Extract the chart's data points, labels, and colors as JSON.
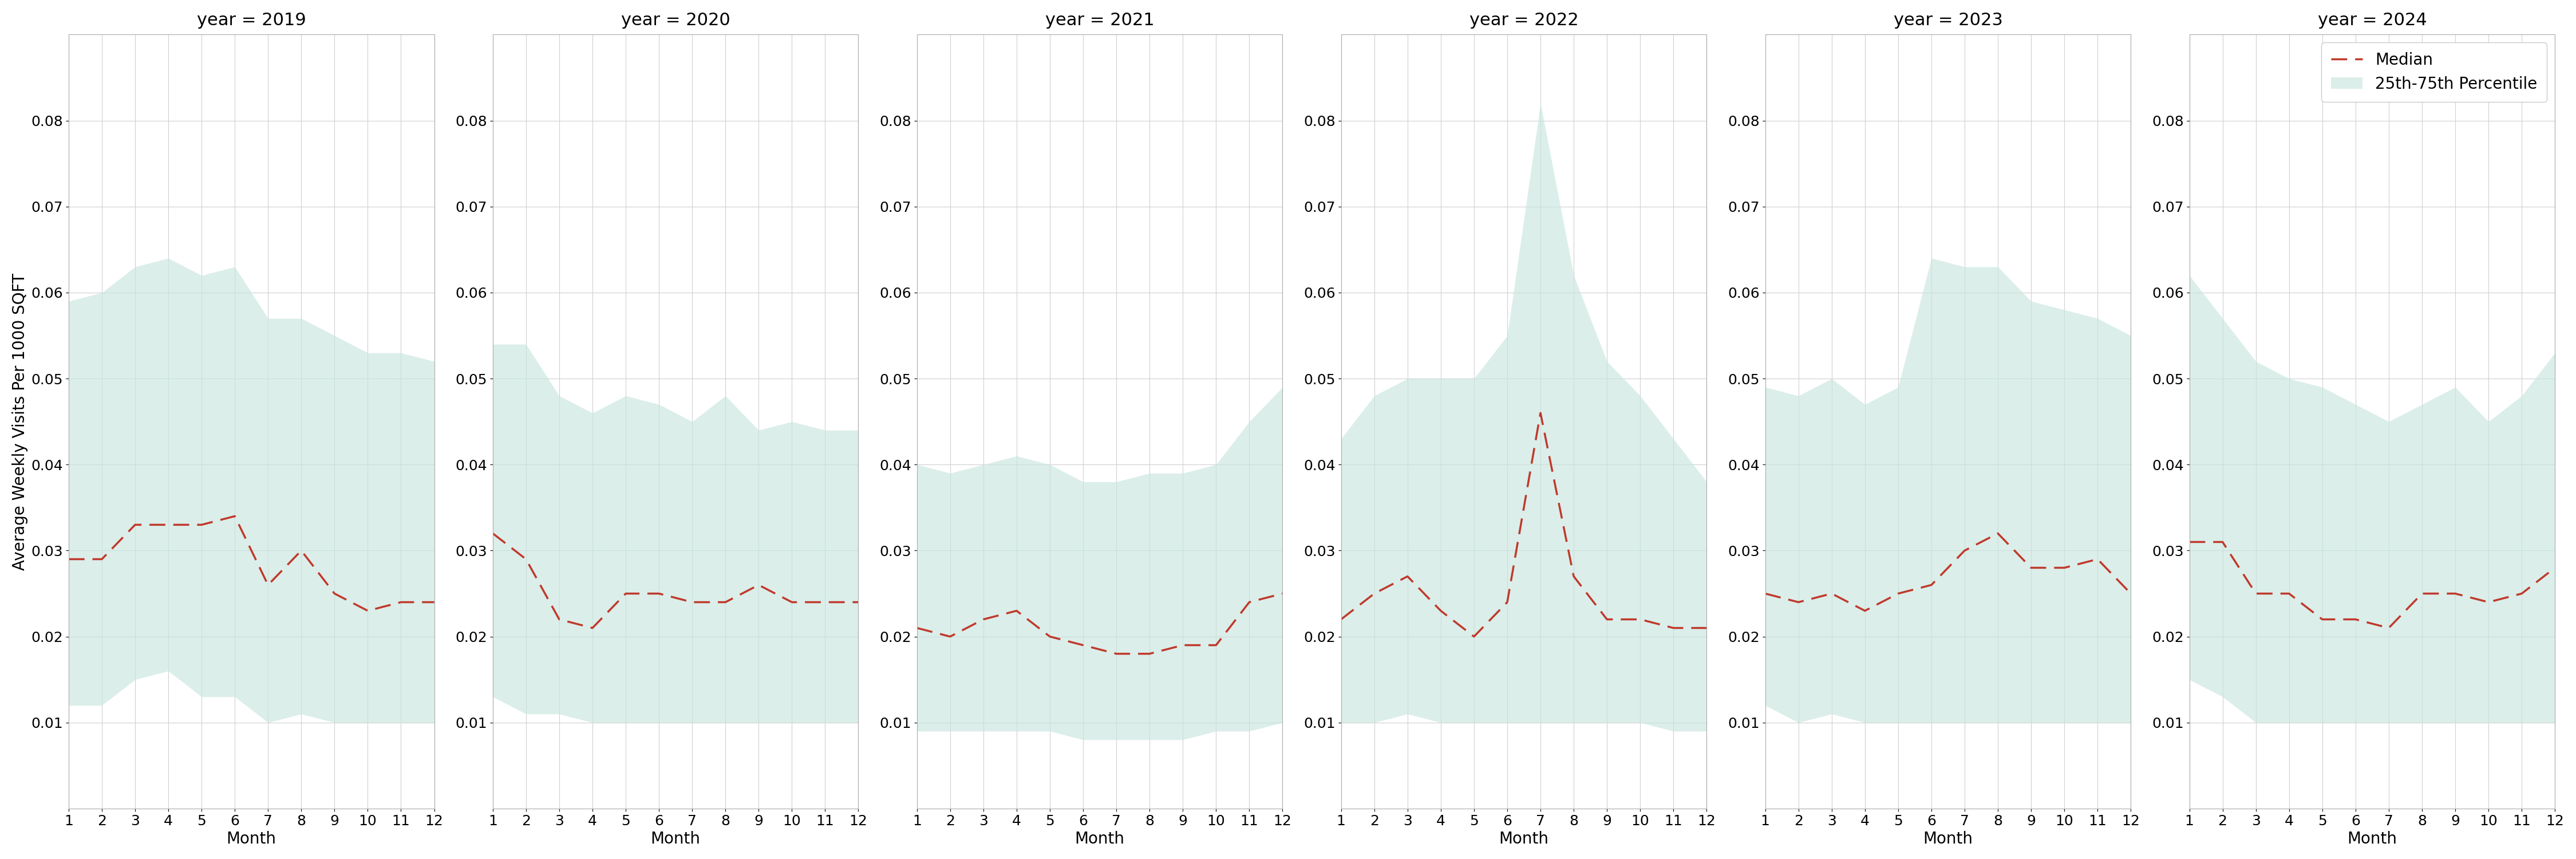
{
  "years": [
    2019,
    2020,
    2021,
    2022,
    2023,
    2024
  ],
  "months": [
    1,
    2,
    3,
    4,
    5,
    6,
    7,
    8,
    9,
    10,
    11,
    12
  ],
  "median": {
    "2019": [
      0.029,
      0.029,
      0.033,
      0.033,
      0.033,
      0.034,
      0.026,
      0.03,
      0.025,
      0.023,
      0.024,
      0.024
    ],
    "2020": [
      0.032,
      0.029,
      0.022,
      0.021,
      0.025,
      0.025,
      0.024,
      0.024,
      0.026,
      0.024,
      0.024,
      0.024
    ],
    "2021": [
      0.021,
      0.02,
      0.022,
      0.023,
      0.02,
      0.019,
      0.018,
      0.018,
      0.019,
      0.019,
      0.024,
      0.025
    ],
    "2022": [
      0.022,
      0.025,
      0.027,
      0.023,
      0.02,
      0.024,
      0.046,
      0.027,
      0.022,
      0.022,
      0.021,
      0.021
    ],
    "2023": [
      0.025,
      0.024,
      0.025,
      0.023,
      0.025,
      0.026,
      0.03,
      0.032,
      0.028,
      0.028,
      0.029,
      0.025
    ],
    "2024": [
      0.031,
      0.031,
      0.025,
      0.025,
      0.022,
      0.022,
      0.021,
      0.025,
      0.025,
      0.024,
      0.025,
      0.028
    ]
  },
  "q25": {
    "2019": [
      0.012,
      0.012,
      0.015,
      0.016,
      0.013,
      0.013,
      0.01,
      0.011,
      0.01,
      0.01,
      0.01,
      0.01
    ],
    "2020": [
      0.013,
      0.011,
      0.011,
      0.01,
      0.01,
      0.01,
      0.01,
      0.01,
      0.01,
      0.01,
      0.01,
      0.01
    ],
    "2021": [
      0.009,
      0.009,
      0.009,
      0.009,
      0.009,
      0.008,
      0.008,
      0.008,
      0.008,
      0.009,
      0.009,
      0.01
    ],
    "2022": [
      0.01,
      0.01,
      0.011,
      0.01,
      0.01,
      0.01,
      0.01,
      0.01,
      0.01,
      0.01,
      0.009,
      0.009
    ],
    "2023": [
      0.012,
      0.01,
      0.011,
      0.01,
      0.01,
      0.01,
      0.01,
      0.01,
      0.01,
      0.01,
      0.01,
      0.01
    ],
    "2024": [
      0.015,
      0.013,
      0.01,
      0.01,
      0.01,
      0.01,
      0.01,
      0.01,
      0.01,
      0.01,
      0.01,
      0.01
    ]
  },
  "q75": {
    "2019": [
      0.059,
      0.06,
      0.063,
      0.064,
      0.062,
      0.063,
      0.057,
      0.057,
      0.055,
      0.053,
      0.053,
      0.052
    ],
    "2020": [
      0.054,
      0.054,
      0.048,
      0.046,
      0.048,
      0.047,
      0.045,
      0.048,
      0.044,
      0.045,
      0.044,
      0.044
    ],
    "2021": [
      0.04,
      0.039,
      0.04,
      0.041,
      0.04,
      0.038,
      0.038,
      0.039,
      0.039,
      0.04,
      0.045,
      0.049
    ],
    "2022": [
      0.043,
      0.048,
      0.05,
      0.05,
      0.05,
      0.055,
      0.082,
      0.062,
      0.052,
      0.048,
      0.043,
      0.038
    ],
    "2023": [
      0.049,
      0.048,
      0.05,
      0.047,
      0.049,
      0.064,
      0.063,
      0.063,
      0.059,
      0.058,
      0.057,
      0.055
    ],
    "2024": [
      0.062,
      0.057,
      0.052,
      0.05,
      0.049,
      0.047,
      0.045,
      0.047,
      0.049,
      0.045,
      0.048,
      0.053
    ]
  },
  "ylim": [
    0.0,
    0.09
  ],
  "yticks": [
    0.01,
    0.02,
    0.03,
    0.04,
    0.05,
    0.06,
    0.07,
    0.08
  ],
  "ylabel": "Average Weekly Visits Per 1000 SQFT",
  "xlabel": "Month",
  "fill_color": "#c8e6e0",
  "fill_alpha": 0.65,
  "line_color": "#c0392b",
  "background_color": "#ffffff",
  "grid_color": "#d0d0d0",
  "title_fontsize": 22,
  "label_fontsize": 20,
  "tick_fontsize": 18,
  "legend_fontsize": 20
}
